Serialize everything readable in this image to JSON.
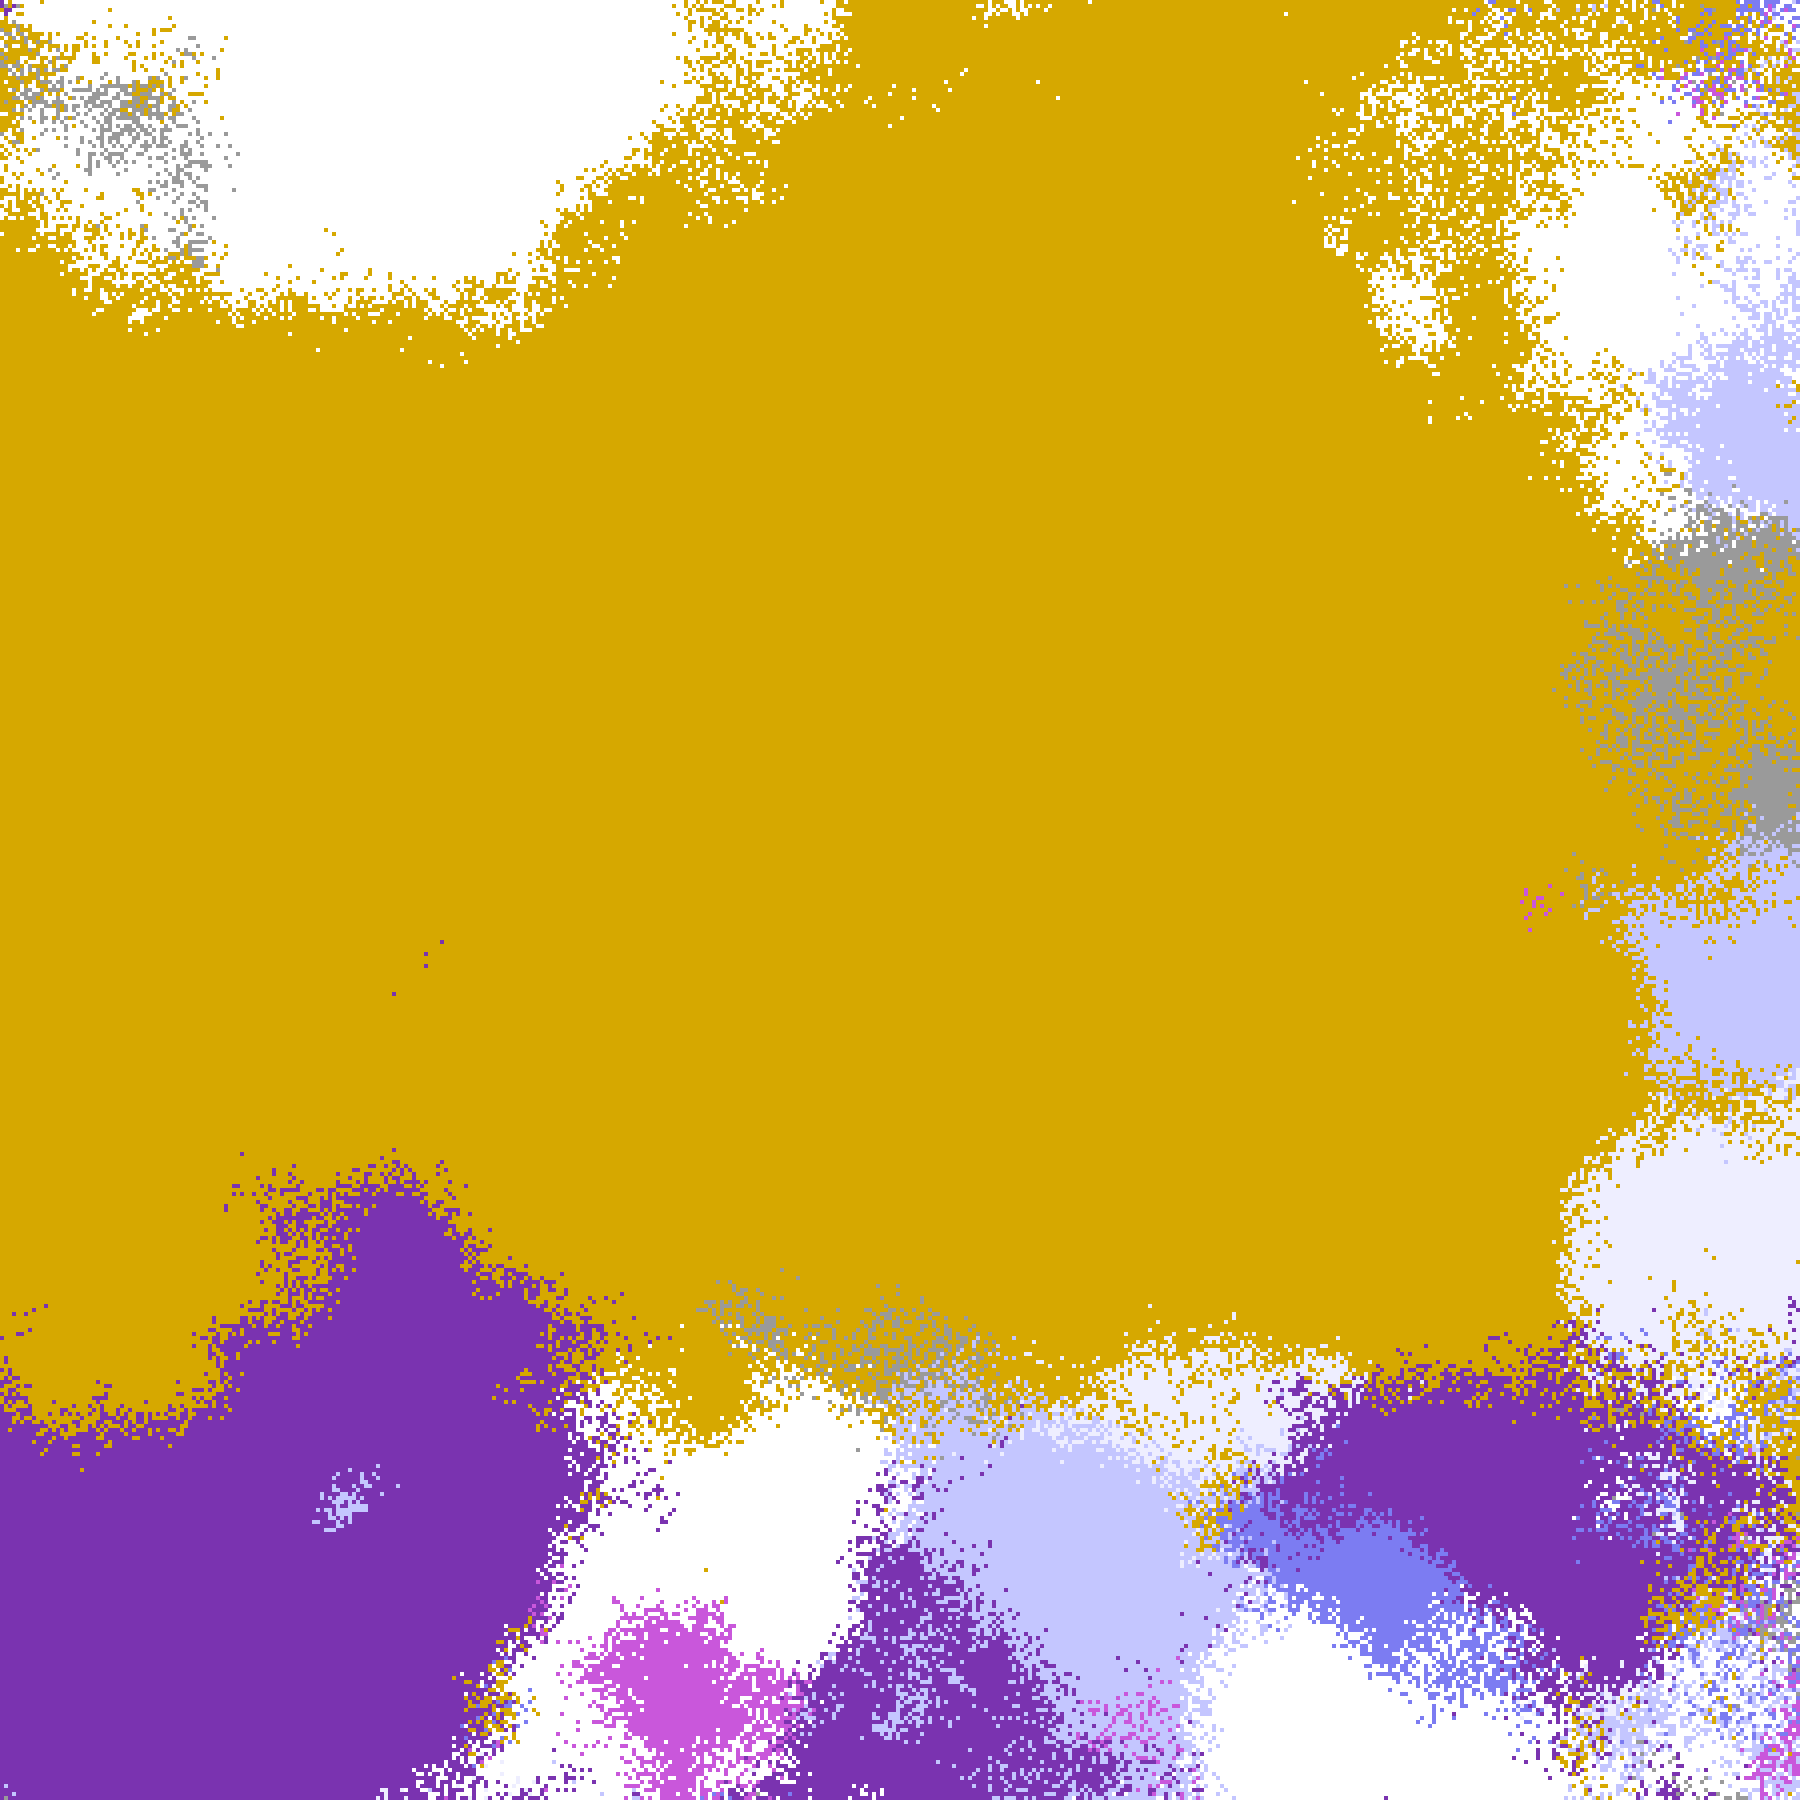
{
  "map": {
    "palette": {
      "clear": "#FFFFFF",
      "gold": "#D6A800",
      "purple": "#7A33B0",
      "magenta": "#C957DB",
      "pale_lavender": "#EEEEFF",
      "lavender": "#C4C6FF",
      "periwinkle": "#7C7CF2",
      "gray": "#9A9A9A"
    }
  }
}
